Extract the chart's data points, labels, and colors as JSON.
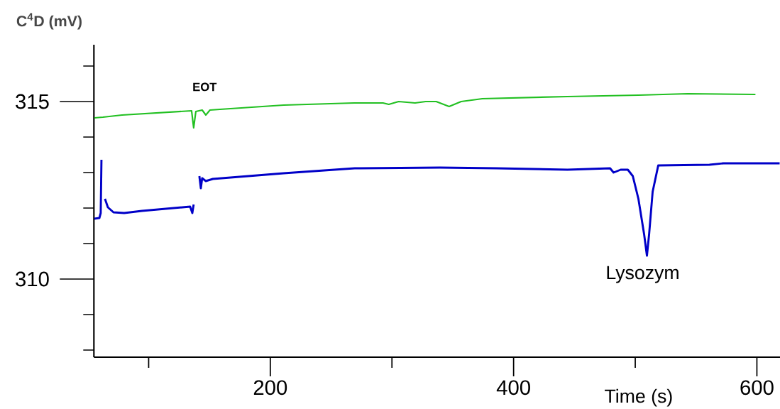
{
  "chart_data": {
    "type": "line",
    "xlabel": "Time (s)",
    "ylabel": "C$^{4}$D  (mV)",
    "xlim": [
      55,
      619
    ],
    "ylim": [
      307.8,
      316.6
    ],
    "xticks": [
      {
        "value": 100,
        "label": null
      },
      200,
      {
        "value": 300,
        "label": null
      },
      400,
      {
        "value": 500,
        "label": null
      },
      600
    ],
    "yticks": [
      {
        "value": 308,
        "label": null
      },
      {
        "value": 309,
        "label": null
      },
      310,
      {
        "value": 311,
        "label": null
      },
      {
        "value": 312,
        "label": null
      },
      {
        "value": 313,
        "label": null
      },
      {
        "value": 314,
        "label": null
      },
      315,
      {
        "value": 316,
        "label": null
      }
    ],
    "marker": "none",
    "line_style": "solid",
    "annotations": [
      {
        "text": "EOT",
        "x": 146,
        "y": 314.76
      },
      {
        "text": "Lysozym",
        "x": 509.6,
        "y": 310.66
      }
    ],
    "series": [
      {
        "color": "#22c022",
        "x": [
          55.4,
          62.4,
          78.1,
          135.3,
          137,
          138.8,
          144,
          147,
          150.4,
          158.6,
          211,
          269,
          292.7,
          297.4,
          305.5,
          319,
          327.7,
          336.4,
          347,
          356.9,
          374.3,
          444.3,
          502.6,
          543,
          598.8
        ],
        "values": [
          314.54,
          314.56,
          314.62,
          314.74,
          314.26,
          314.72,
          314.76,
          314.62,
          314.76,
          314.78,
          314.9,
          314.96,
          314.96,
          314.92,
          315.0,
          314.96,
          315.0,
          315.0,
          314.86,
          315.0,
          315.08,
          315.14,
          315.18,
          315.22,
          315.2
        ]
      },
      {
        "color": "#0000c8",
        "x": [
          55.4,
          59.5,
          60.6,
          61.2,
          61.8,
          63.6,
          64.1,
          66.5,
          71.1,
          79.9,
          94.5,
          134.1,
          135.9,
          137.0,
          137.6,
          138.8,
          141.1,
          141.7,
          142.9,
          144,
          147,
          152.8,
          211,
          269.4,
          339.4,
          386,
          444.3,
          479.3,
          482.2,
          488,
          493.9,
          498,
          502.6,
          507.3,
          509.6,
          511.4,
          514.3,
          518.9,
          561,
          572.6,
          618.7
        ],
        "values": [
          311.7,
          311.72,
          311.86,
          313.36,
          null,
          null,
          312.26,
          312.02,
          311.88,
          311.86,
          311.92,
          312.04,
          311.86,
          312.1,
          null,
          null,
          null,
          312.9,
          312.56,
          312.84,
          312.76,
          312.82,
          312.98,
          313.12,
          313.14,
          313.12,
          313.08,
          313.12,
          313.0,
          313.08,
          313.08,
          312.9,
          312.26,
          311.26,
          310.66,
          311.26,
          312.46,
          313.2,
          313.22,
          313.26,
          313.26
        ]
      }
    ]
  }
}
